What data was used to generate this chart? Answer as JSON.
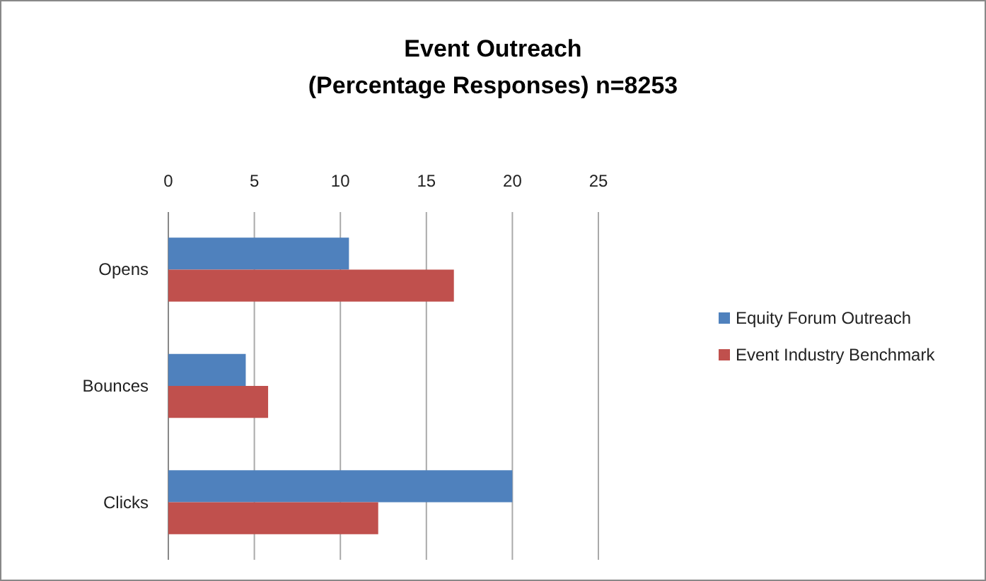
{
  "chart_data": {
    "type": "bar",
    "orientation": "horizontal",
    "title": "Event Outreach\n(Percentage Responses) n=8253",
    "categories": [
      "Opens",
      "Bounces",
      "Clicks"
    ],
    "series": [
      {
        "name": "Equity Forum Outreach",
        "color": "#4f81bd",
        "values": [
          10.5,
          4.5,
          20
        ]
      },
      {
        "name": "Event Industry Benchmark",
        "color": "#c0504d",
        "values": [
          16.6,
          5.8,
          12.2
        ]
      }
    ],
    "xlim": [
      0,
      25
    ],
    "xticks": [
      0,
      5,
      10,
      15,
      20,
      25
    ],
    "grid": "x",
    "legend": "right"
  }
}
